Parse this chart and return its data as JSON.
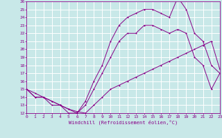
{
  "xlabel": "Windchill (Refroidissement éolien,°C)",
  "background_color": "#c8e8e8",
  "grid_color": "#ffffff",
  "line_color": "#880088",
  "xlim": [
    0,
    23
  ],
  "ylim": [
    12,
    26
  ],
  "xticks": [
    0,
    1,
    2,
    3,
    4,
    5,
    6,
    7,
    8,
    9,
    10,
    11,
    12,
    13,
    14,
    15,
    16,
    17,
    18,
    19,
    20,
    21,
    22,
    23
  ],
  "yticks": [
    12,
    13,
    14,
    15,
    16,
    17,
    18,
    19,
    20,
    21,
    22,
    23,
    24,
    25,
    26
  ],
  "line1_x": [
    0,
    1,
    2,
    3,
    4,
    5,
    6,
    7,
    8,
    9,
    10,
    11,
    12,
    13,
    14,
    15,
    16,
    17,
    18,
    19,
    20,
    21,
    22,
    23
  ],
  "line1_y": [
    15,
    14.5,
    14,
    13.5,
    13,
    12.5,
    12.2,
    12,
    13,
    14,
    15,
    15.5,
    16,
    16.5,
    17,
    17.5,
    18,
    18.5,
    19,
    19.5,
    20,
    20.5,
    21,
    17.5
  ],
  "line2_x": [
    0,
    1,
    2,
    3,
    4,
    5,
    6,
    7,
    8,
    9,
    10,
    11,
    12,
    13,
    14,
    15,
    16,
    17,
    18,
    19,
    20,
    21,
    22,
    23
  ],
  "line2_y": [
    15,
    14,
    14,
    13,
    13,
    12,
    12,
    13,
    15,
    17,
    19,
    21,
    22,
    22,
    23,
    23,
    22.5,
    22,
    22.5,
    22,
    19,
    18,
    15,
    17
  ],
  "line3_x": [
    0,
    1,
    2,
    3,
    4,
    5,
    6,
    7,
    8,
    9,
    10,
    11,
    12,
    13,
    14,
    15,
    16,
    17,
    18,
    19,
    20,
    21,
    22,
    23
  ],
  "line3_y": [
    15,
    14,
    14,
    13.5,
    13,
    12.5,
    12,
    13.5,
    16,
    18,
    21,
    23,
    24,
    24.5,
    25,
    25,
    24.5,
    24,
    26.5,
    25,
    22,
    21,
    18,
    17
  ]
}
